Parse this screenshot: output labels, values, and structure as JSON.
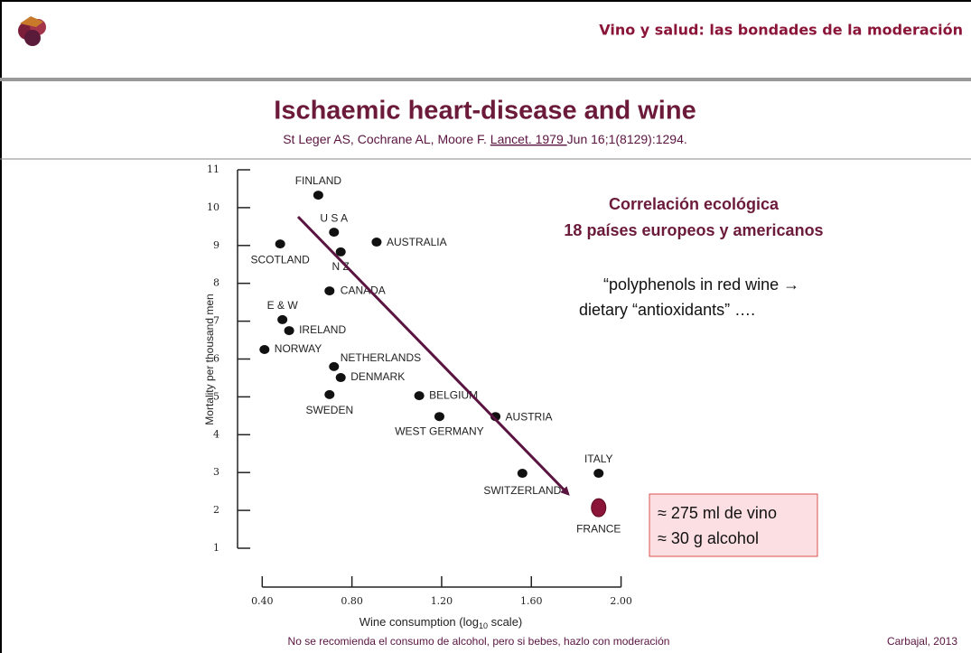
{
  "slide": {
    "header": "Vino y salud: las bondades de la moderación",
    "title": "Ischaemic heart-disease and wine",
    "citation": [
      "St Leger AS,  Cochrane AL, Moore F. ",
      "Lancet. 1979 ",
      "Jun 16;1(8129):1294."
    ],
    "note_title": [
      "Correlación ecológica",
      "18 países europeos y americanos"
    ],
    "quote": [
      "“polyphenols in red wine →",
      "dietary “antioxidants” …."
    ],
    "box": [
      "≈ 275 ml de vino",
      "≈ 30 g alcohol"
    ],
    "footer": "No se recomienda el consumo de alcohol, pero si bebes, hazlo con moderación",
    "credit": "Carbajal, 2013"
  },
  "chart_data": {
    "type": "scatter",
    "x_label": [
      "Wine consumption (log",
      "10",
      " scale)"
    ],
    "y_label": "Mortality per thousand men",
    "labels": [
      "FINLAND",
      "U S A",
      "AUSTRALIA",
      "SCOTLAND",
      "N Z",
      "CANADA",
      "E & W",
      "IRELAND",
      "NORWAY",
      "NETHERLANDS",
      "DENMARK",
      "SWEDEN",
      "BELGIUM",
      "WEST GERMANY",
      "AUSTRIA",
      "SWITZERLAND",
      "ITALY",
      "FRANCE"
    ],
    "x": [
      0.65,
      0.72,
      0.91,
      0.48,
      0.75,
      0.7,
      0.49,
      0.52,
      0.41,
      0.72,
      0.75,
      0.7,
      1.1,
      1.19,
      1.44,
      1.56,
      1.9,
      1.9
    ],
    "values": [
      10.33,
      9.35,
      9.09,
      9.04,
      8.83,
      7.8,
      7.04,
      6.75,
      6.25,
      5.8,
      5.51,
      5.06,
      5.03,
      4.48,
      4.48,
      2.98,
      2.98,
      2.07
    ],
    "colors": [
      "#111111",
      "#111111",
      "#111111",
      "#111111",
      "#111111",
      "#111111",
      "#111111",
      "#111111",
      "#111111",
      "#111111",
      "#111111",
      "#111111",
      "#111111",
      "#111111",
      "#111111",
      "#111111",
      "#111111",
      "#8b1538"
    ],
    "xlim": [
      0.29,
      2.05
    ],
    "ylim": [
      1,
      11
    ],
    "xticks": [
      {
        "value": 0.4,
        "label": "0.40"
      },
      {
        "value": 0.8,
        "label": "0.80"
      },
      {
        "value": 1.2,
        "label": "1.20"
      },
      {
        "value": 1.6,
        "label": "1.60"
      },
      {
        "value": 2.0,
        "label": "2.00"
      }
    ],
    "yticks": [
      1,
      2,
      3,
      4,
      5,
      6,
      7,
      8,
      9,
      10,
      11
    ]
  }
}
